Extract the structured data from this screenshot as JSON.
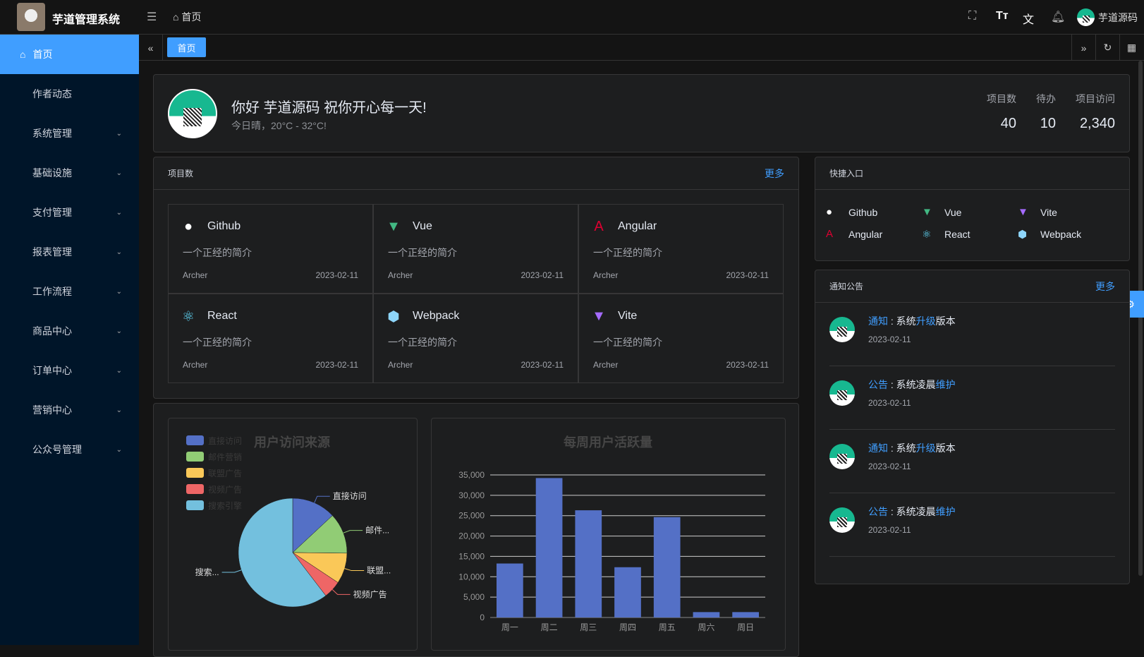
{
  "header": {
    "app_title": "芋道管理系统",
    "breadcrumb": "首页",
    "user_name": "芋道源码"
  },
  "sidebar": {
    "items": [
      {
        "label": "首页",
        "active": true
      },
      {
        "label": "作者动态"
      },
      {
        "label": "系统管理",
        "expandable": true
      },
      {
        "label": "基础设施",
        "expandable": true
      },
      {
        "label": "支付管理",
        "expandable": true
      },
      {
        "label": "报表管理",
        "expandable": true
      },
      {
        "label": "工作流程",
        "expandable": true
      },
      {
        "label": "商品中心",
        "expandable": true
      },
      {
        "label": "订单中心",
        "expandable": true
      },
      {
        "label": "营销中心",
        "expandable": true
      },
      {
        "label": "公众号管理",
        "expandable": true
      }
    ]
  },
  "tabs": [
    {
      "label": "首页",
      "active": true
    }
  ],
  "welcome": {
    "greeting": "你好 芋道源码 祝你开心每一天!",
    "weather": "今日晴，20°C - 32°C!",
    "stats": [
      {
        "label": "项目数",
        "value": "40"
      },
      {
        "label": "待办",
        "value": "10"
      },
      {
        "label": "项目访问",
        "value": "2,340"
      }
    ]
  },
  "projects": {
    "title": "项目数",
    "more": "更多",
    "items": [
      {
        "name": "Github",
        "icon": "github-icon",
        "desc": "一个正经的简介",
        "author": "Archer",
        "date": "2023-02-11"
      },
      {
        "name": "Vue",
        "icon": "vue-icon",
        "desc": "一个正经的简介",
        "author": "Archer",
        "date": "2023-02-11"
      },
      {
        "name": "Angular",
        "icon": "angular-icon",
        "desc": "一个正经的简介",
        "author": "Archer",
        "date": "2023-02-11"
      },
      {
        "name": "React",
        "icon": "react-icon",
        "desc": "一个正经的简介",
        "author": "Archer",
        "date": "2023-02-11"
      },
      {
        "name": "Webpack",
        "icon": "webpack-icon",
        "desc": "一个正经的简介",
        "author": "Archer",
        "date": "2023-02-11"
      },
      {
        "name": "Vite",
        "icon": "vite-icon",
        "desc": "一个正经的简介",
        "author": "Archer",
        "date": "2023-02-11"
      }
    ]
  },
  "shortcuts": {
    "title": "快捷入口",
    "items": [
      {
        "name": "Github"
      },
      {
        "name": "Vue"
      },
      {
        "name": "Vite"
      },
      {
        "name": "Angular"
      },
      {
        "name": "React"
      },
      {
        "name": "Webpack"
      }
    ]
  },
  "notices": {
    "title": "通知公告",
    "more": "更多",
    "items": [
      {
        "type": "通知",
        "pre": "系统",
        "hl": "升级",
        "post": "版本",
        "date": "2023-02-11"
      },
      {
        "type": "公告",
        "pre": "系统凌晨",
        "hl": "维护",
        "post": "",
        "date": "2023-02-11"
      },
      {
        "type": "通知",
        "pre": "系统",
        "hl": "升级",
        "post": "版本",
        "date": "2023-02-11"
      },
      {
        "type": "公告",
        "pre": "系统凌晨",
        "hl": "维护",
        "post": "",
        "date": "2023-02-11"
      }
    ]
  },
  "chart_data": [
    {
      "type": "pie",
      "title": "用户访问来源",
      "legend_placement": "top-left",
      "categories": [
        "直接访问",
        "邮件营销",
        "联盟广告",
        "视频广告",
        "搜索引擎"
      ],
      "values": [
        335,
        310,
        234,
        135,
        1548
      ],
      "slice_labels": [
        "直接访问",
        "邮件...",
        "联盟...",
        "视频广告",
        "搜索..."
      ],
      "colors": [
        "#5470c6",
        "#91cc75",
        "#fac858",
        "#ee6666",
        "#73c0de"
      ]
    },
    {
      "type": "bar",
      "title": "每周用户活跃量",
      "categories": [
        "周一",
        "周二",
        "周三",
        "周四",
        "周五",
        "周六",
        "周日"
      ],
      "values": [
        13253,
        34235,
        26321,
        12340,
        24643,
        1322,
        1324
      ],
      "ylim": [
        0,
        35000
      ],
      "yticks": [
        "0",
        "5,000",
        "10,000",
        "15,000",
        "20,000",
        "25,000",
        "30,000",
        "35,000"
      ],
      "grid": true,
      "color": "#5470c6"
    }
  ]
}
